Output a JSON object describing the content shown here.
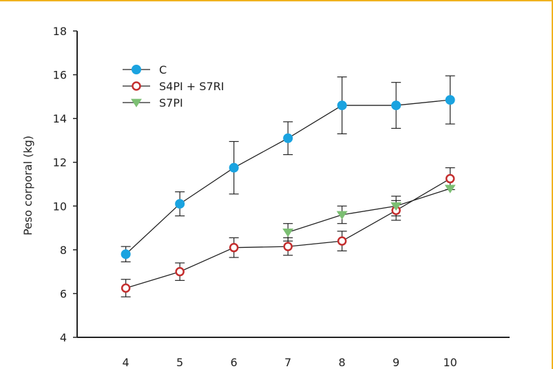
{
  "colors": {
    "frame": "#f0b21f",
    "axis": "#222222",
    "series_line": "#222222"
  },
  "chart_data": {
    "type": "line",
    "title": "",
    "xlabel": "",
    "ylabel": "Peso corporal (kg)",
    "x_ticks": [
      4,
      5,
      6,
      7,
      8,
      9,
      10
    ],
    "y_ticks": [
      4,
      6,
      8,
      10,
      12,
      14,
      16,
      18
    ],
    "xlim": [
      3.1,
      11.1
    ],
    "ylim": [
      4,
      18
    ],
    "grid": false,
    "legend_position": "top-left",
    "series": [
      {
        "name": "C",
        "marker": "filled-circle",
        "color": "#1aa3e0",
        "x": [
          4,
          5,
          6,
          7,
          8,
          9,
          10
        ],
        "y": [
          7.8,
          10.1,
          11.75,
          13.1,
          14.6,
          14.6,
          14.85
        ],
        "error": [
          0.35,
          0.55,
          1.2,
          0.75,
          1.3,
          1.05,
          1.1
        ]
      },
      {
        "name": "S4PI + S7RI",
        "marker": "open-circle",
        "color": "#c42d2d",
        "x": [
          4,
          5,
          6,
          7,
          8,
          9,
          10
        ],
        "y": [
          6.25,
          7.0,
          8.1,
          8.15,
          8.4,
          9.8,
          11.25
        ],
        "error": [
          0.4,
          0.4,
          0.45,
          0.4,
          0.45,
          0.45,
          0.5
        ]
      },
      {
        "name": "S7PI",
        "marker": "filled-triangle-down",
        "color": "#7cbf73",
        "x": [
          7,
          8,
          9,
          10
        ],
        "y": [
          8.8,
          9.6,
          10.0,
          10.8
        ],
        "error": [
          0.4,
          0.4,
          0.45,
          0.0
        ]
      }
    ]
  }
}
